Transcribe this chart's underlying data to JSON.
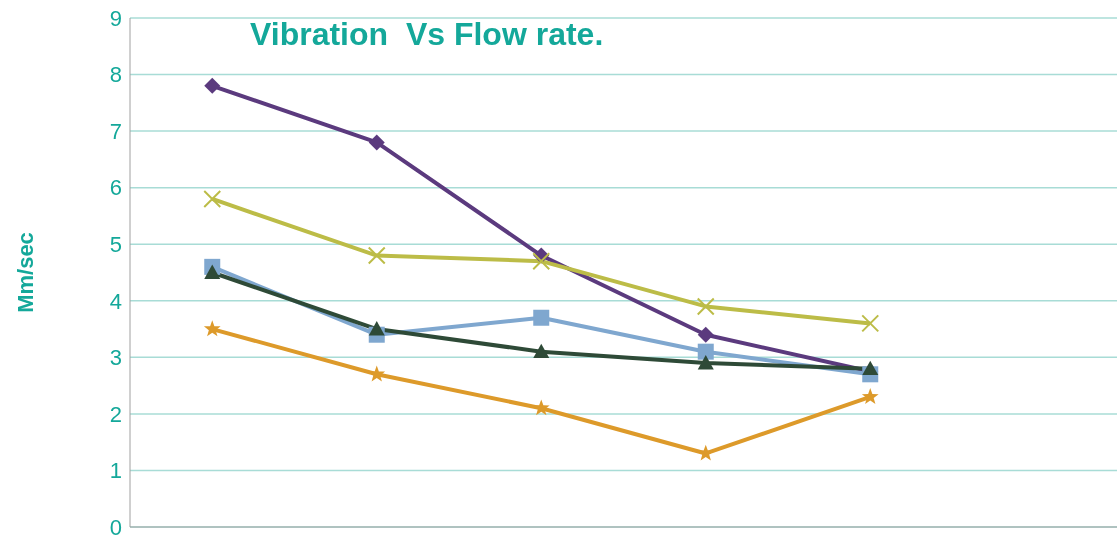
{
  "chart_data": {
    "type": "line",
    "title": "Vibration  Vs Flow rate.",
    "ylabel": "Mm/sec",
    "categories": [
      null,
      null,
      null,
      null,
      null,
      null
    ],
    "series": [
      {
        "color": "#5b3a7e",
        "marker": "diamond",
        "values": [
          7.8,
          6.8,
          4.8,
          3.4,
          2.75,
          null
        ]
      },
      {
        "color": "#bcbc47",
        "marker": "cross",
        "values": [
          5.8,
          4.8,
          4.7,
          3.9,
          3.6,
          null
        ]
      },
      {
        "color": "#7fa7cf",
        "marker": "square",
        "values": [
          4.6,
          3.4,
          3.7,
          3.1,
          2.7,
          null
        ]
      },
      {
        "color": "#2e4a37",
        "marker": "triangle",
        "values": [
          4.5,
          3.5,
          3.1,
          2.9,
          2.8,
          null
        ]
      },
      {
        "color": "#dd9a2a",
        "marker": "star",
        "values": [
          3.5,
          2.7,
          2.1,
          1.3,
          2.3,
          null
        ]
      }
    ],
    "ylim": [
      0,
      9
    ],
    "yticks": [
      0,
      1,
      2,
      3,
      4,
      5,
      6,
      7,
      8,
      9
    ],
    "grid": "y",
    "legend": false,
    "tick_labels": "y",
    "line_style": "solid"
  }
}
